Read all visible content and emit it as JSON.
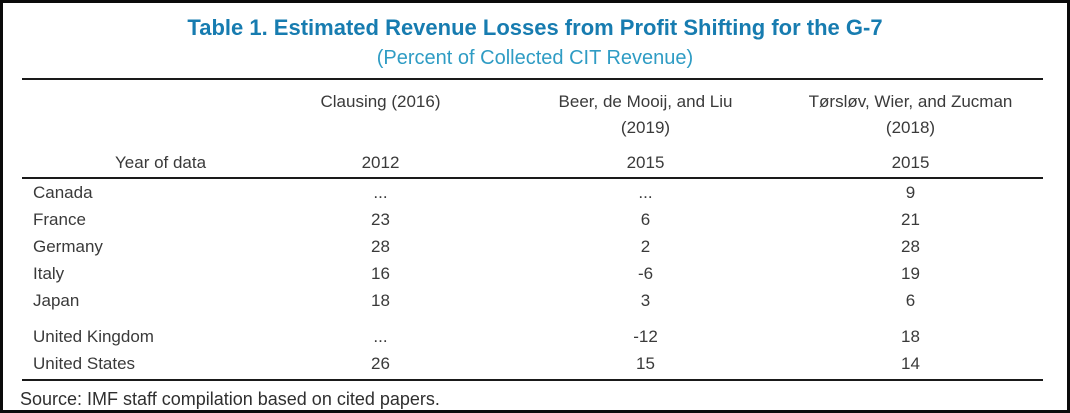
{
  "table": {
    "title": "Table 1. Estimated Revenue Losses from Profit Shifting for the G-7",
    "subtitle": "(Percent of Collected CIT Revenue)",
    "year_label": "Year of data",
    "columns": [
      {
        "label": "Clausing (2016)",
        "label2": "",
        "year": "2012"
      },
      {
        "label": "Beer, de Mooij, and Liu",
        "label2": "(2019)",
        "year": "2015"
      },
      {
        "label": "Tørsløv, Wier, and Zucman",
        "label2": "(2018)",
        "year": "2015"
      }
    ],
    "rows": [
      {
        "country": "Canada",
        "values": [
          "...",
          "...",
          "9"
        ]
      },
      {
        "country": "France",
        "values": [
          "23",
          "6",
          "21"
        ]
      },
      {
        "country": "Germany",
        "values": [
          "28",
          "2",
          "28"
        ]
      },
      {
        "country": "Italy",
        "values": [
          "16",
          "-6",
          "19"
        ]
      },
      {
        "country": "Japan",
        "values": [
          "18",
          "3",
          "6"
        ]
      },
      {
        "country": "United Kingdom",
        "values": [
          "...",
          "-12",
          "18"
        ]
      },
      {
        "country": "United States",
        "values": [
          "26",
          "15",
          "14"
        ]
      }
    ],
    "source": "Source: IMF staff compilation based on cited papers.",
    "colors": {
      "title": "#177cb0",
      "subtitle": "#2f9cc4",
      "body_text": "#3a3a3a",
      "rule": "#1a1a1a"
    }
  },
  "chart_data": {
    "type": "table",
    "title": "Table 1. Estimated Revenue Losses from Profit Shifting for the G-7",
    "subtitle": "(Percent of Collected CIT Revenue)",
    "categories": [
      "Canada",
      "France",
      "Germany",
      "Italy",
      "Japan",
      "United Kingdom",
      "United States"
    ],
    "series": [
      {
        "name": "Clausing (2016)",
        "year": 2012,
        "values": [
          null,
          23,
          28,
          16,
          18,
          null,
          26
        ]
      },
      {
        "name": "Beer, de Mooij, and Liu (2019)",
        "year": 2015,
        "values": [
          null,
          6,
          2,
          -6,
          3,
          -12,
          15
        ]
      },
      {
        "name": "Tørsløv, Wier, and Zucman (2018)",
        "year": 2015,
        "values": [
          9,
          21,
          28,
          19,
          6,
          18,
          14
        ]
      }
    ],
    "note": "Source: IMF staff compilation based on cited papers."
  }
}
